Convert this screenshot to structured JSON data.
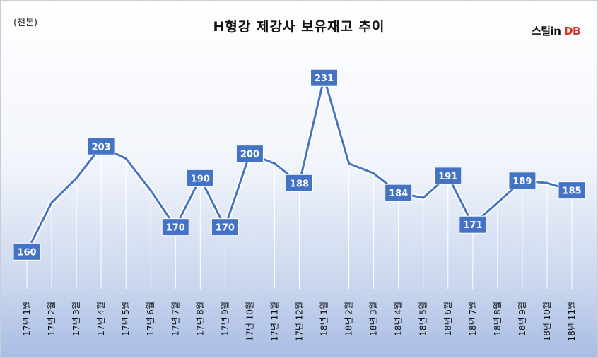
{
  "header": {
    "unit": "(천톤)",
    "title": "H형강 제강사 보유재고 추이",
    "logo_text": "스틸in",
    "logo_db": "DB"
  },
  "chart_data": {
    "type": "line",
    "title": "H형강 제강사 보유재고 추이",
    "ylabel": "(천톤)",
    "xlabel": "",
    "categories": [
      "17년 1월",
      "17년 2월",
      "17년 3월",
      "17년 4월",
      "17년 5월",
      "17년 6월",
      "17년 7월",
      "17년 8월",
      "17년 9월",
      "17년 10월",
      "17년 11월",
      "17년 12월",
      "18년 1월",
      "18년 2월",
      "18년 3월",
      "18년 4월",
      "18년 5월",
      "18년 6월",
      "18년 7월",
      "18년 8월",
      "18년 9월",
      "18년 10월",
      "18년 11월"
    ],
    "values": [
      160,
      180,
      190,
      203,
      198,
      185,
      170,
      190,
      170,
      200,
      196,
      188,
      231,
      196,
      192,
      184,
      182,
      191,
      171,
      180,
      189,
      188,
      185
    ],
    "labeled_indices": [
      0,
      3,
      6,
      7,
      8,
      9,
      11,
      12,
      15,
      17,
      18,
      20,
      22
    ],
    "ylim": [
      150,
      240
    ],
    "grid": false,
    "line_color": "#4472c4",
    "label_bg_color": "#4472c4",
    "label_text_color": "#ffffff",
    "drop_line_color": "#ffffff"
  }
}
